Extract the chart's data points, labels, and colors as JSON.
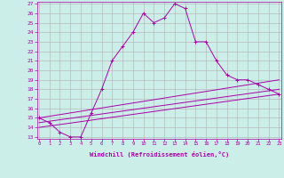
{
  "xlabel": "Windchill (Refroidissement éolien,°C)",
  "background_color": "#cceee8",
  "grid_color": "#b0b0b0",
  "line_color": "#aa00aa",
  "xmin": 0,
  "xmax": 23,
  "ymin": 13,
  "ymax": 27,
  "yticks": [
    13,
    14,
    15,
    16,
    17,
    18,
    19,
    20,
    21,
    22,
    23,
    24,
    25,
    26,
    27
  ],
  "xticks": [
    0,
    1,
    2,
    3,
    4,
    5,
    6,
    7,
    8,
    9,
    10,
    11,
    12,
    13,
    14,
    15,
    16,
    17,
    18,
    19,
    20,
    21,
    22,
    23
  ],
  "series": [
    {
      "x": [
        0,
        1,
        2,
        3,
        4,
        5,
        6,
        7,
        8,
        9,
        10,
        11,
        12,
        13,
        14,
        15,
        16,
        17,
        18,
        19,
        20,
        21,
        22,
        23
      ],
      "y": [
        15,
        14.5,
        13.5,
        13,
        13,
        15.5,
        18,
        21,
        22.5,
        24,
        26,
        25,
        25.5,
        27,
        26.5,
        23,
        23,
        21,
        19.5,
        19,
        19,
        18.5,
        18,
        17.5
      ]
    },
    {
      "x": [
        0,
        23
      ],
      "y": [
        15,
        19
      ]
    },
    {
      "x": [
        0,
        23
      ],
      "y": [
        14.5,
        18
      ]
    },
    {
      "x": [
        0,
        23
      ],
      "y": [
        14.0,
        17.5
      ]
    }
  ]
}
